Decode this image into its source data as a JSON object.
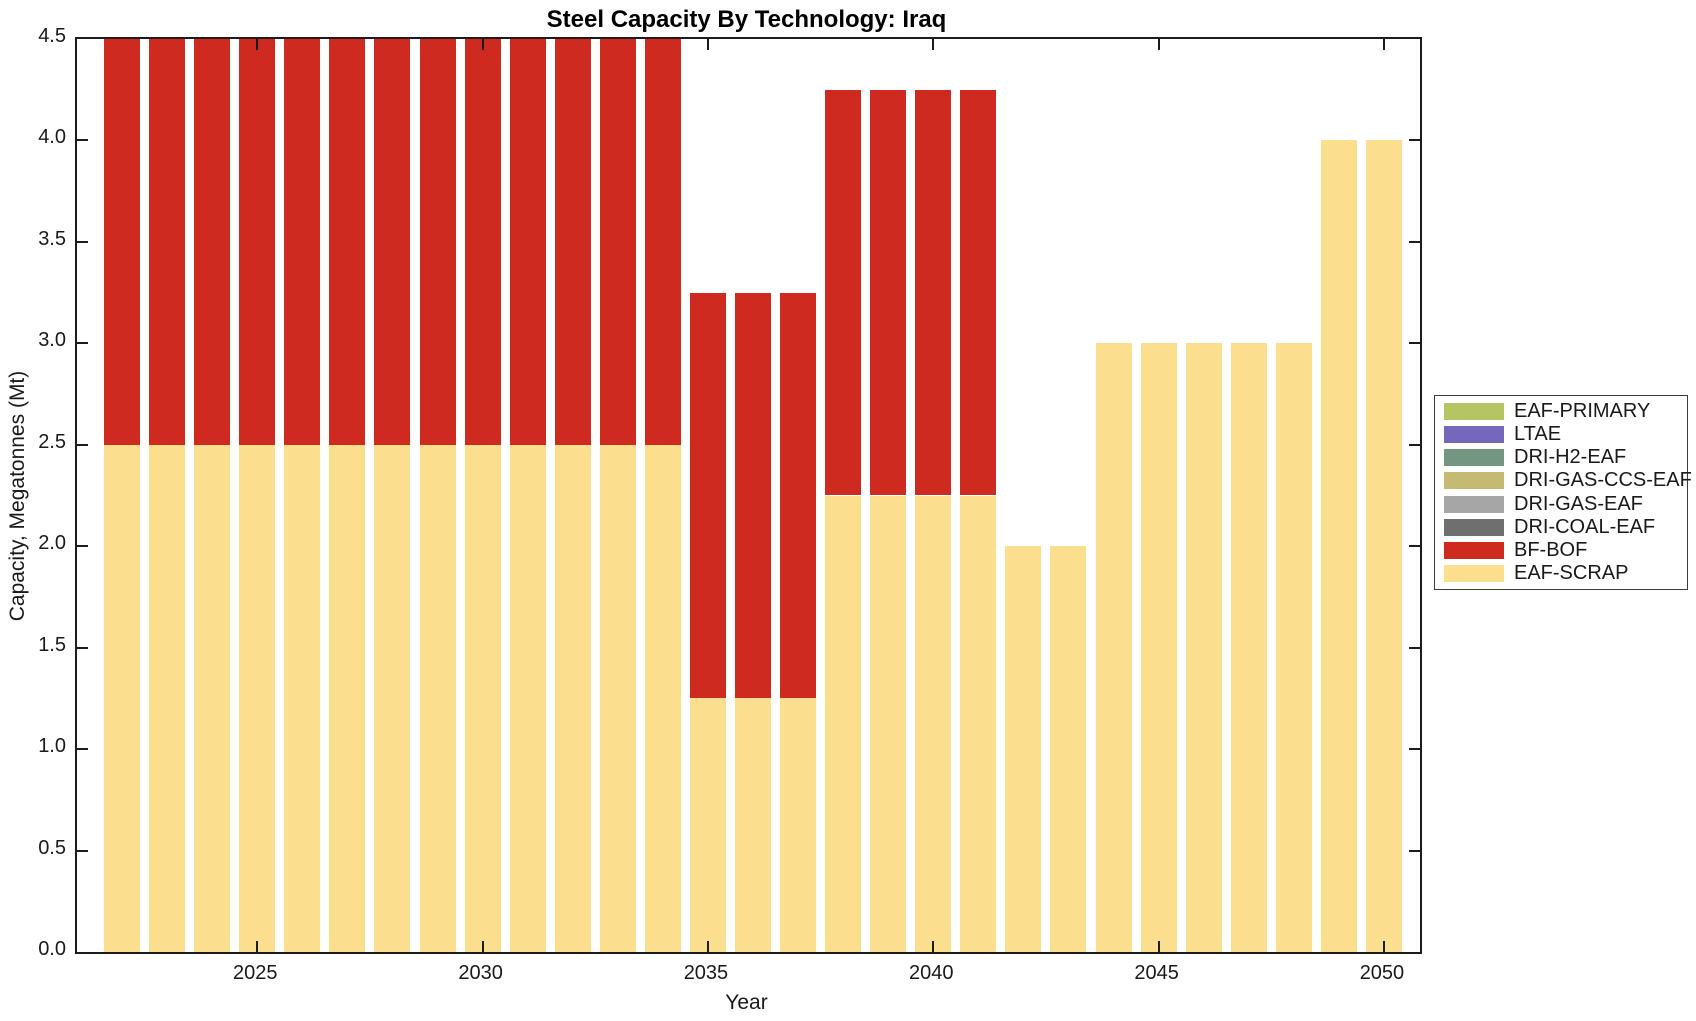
{
  "chart_data": {
    "type": "bar",
    "stacked": true,
    "title": "Steel Capacity By Technology: Iraq",
    "xlabel": "Year",
    "ylabel": "Capacity, Megatonnes (Mt)",
    "xlim": [
      2021.0,
      2050.8
    ],
    "ylim": [
      0,
      4.5
    ],
    "xticks": [
      2025,
      2030,
      2035,
      2040,
      2045,
      2050
    ],
    "ytick_step": 0.5,
    "ytick_labels": [
      "0.0",
      "0.5",
      "1.0",
      "1.5",
      "2.0",
      "2.5",
      "3.0",
      "3.5",
      "4.0",
      "4.5"
    ],
    "bar_width_years": 0.8,
    "grid": false,
    "legend_position": "right-outside",
    "categories": [
      2022,
      2023,
      2024,
      2025,
      2026,
      2027,
      2028,
      2029,
      2030,
      2031,
      2032,
      2033,
      2034,
      2035,
      2036,
      2037,
      2038,
      2039,
      2040,
      2041,
      2042,
      2043,
      2044,
      2045,
      2046,
      2047,
      2048,
      2049,
      2050
    ],
    "series": [
      {
        "name": "EAF-PRIMARY",
        "color": "#b5c564",
        "values": [
          0,
          0,
          0,
          0,
          0,
          0,
          0,
          0,
          0,
          0,
          0,
          0,
          0,
          0,
          0,
          0,
          0,
          0,
          0,
          0,
          0,
          0,
          0,
          0,
          0,
          0,
          0,
          0,
          0
        ]
      },
      {
        "name": "LTAE",
        "color": "#7568bb",
        "values": [
          0,
          0,
          0,
          0,
          0,
          0,
          0,
          0,
          0,
          0,
          0,
          0,
          0,
          0,
          0,
          0,
          0,
          0,
          0,
          0,
          0,
          0,
          0,
          0,
          0,
          0,
          0,
          0,
          0
        ]
      },
      {
        "name": "DRI-H2-EAF",
        "color": "#739680",
        "values": [
          0,
          0,
          0,
          0,
          0,
          0,
          0,
          0,
          0,
          0,
          0,
          0,
          0,
          0,
          0,
          0,
          0,
          0,
          0,
          0,
          0,
          0,
          0,
          0,
          0,
          0,
          0,
          0,
          0
        ]
      },
      {
        "name": "DRI-GAS-CCS-EAF",
        "color": "#c5ba74",
        "values": [
          0,
          0,
          0,
          0,
          0,
          0,
          0,
          0,
          0,
          0,
          0,
          0,
          0,
          0,
          0,
          0,
          0,
          0,
          0,
          0,
          0,
          0,
          0,
          0,
          0,
          0,
          0,
          0,
          0
        ]
      },
      {
        "name": "DRI-GAS-EAF",
        "color": "#a6a6a6",
        "values": [
          0,
          0,
          0,
          0,
          0,
          0,
          0,
          0,
          0,
          0,
          0,
          0,
          0,
          0,
          0,
          0,
          0,
          0,
          0,
          0,
          0,
          0,
          0,
          0,
          0,
          0,
          0,
          0,
          0
        ]
      },
      {
        "name": "DRI-COAL-EAF",
        "color": "#6f6f6f",
        "values": [
          0,
          0,
          0,
          0,
          0,
          0,
          0,
          0,
          0,
          0,
          0,
          0,
          0,
          0,
          0,
          0,
          0,
          0,
          0,
          0,
          0,
          0,
          0,
          0,
          0,
          0,
          0,
          0,
          0
        ]
      },
      {
        "name": "BF-BOF",
        "color": "#cf2a20",
        "values": [
          2.0,
          2.0,
          2.0,
          2.0,
          2.0,
          2.0,
          2.0,
          2.0,
          2.0,
          2.0,
          2.0,
          2.0,
          2.0,
          2.0,
          2.0,
          2.0,
          2.0,
          2.0,
          2.0,
          2.0,
          0,
          0,
          0,
          0,
          0,
          0,
          0,
          0,
          0
        ]
      },
      {
        "name": "EAF-SCRAP",
        "color": "#fbdf8f",
        "values": [
          2.5,
          2.5,
          2.5,
          2.5,
          2.5,
          2.5,
          2.5,
          2.5,
          2.5,
          2.5,
          2.5,
          2.5,
          2.5,
          1.25,
          1.25,
          1.25,
          2.25,
          2.25,
          2.25,
          2.25,
          2.0,
          2.0,
          3.0,
          3.0,
          3.0,
          3.0,
          3.0,
          4.0,
          4.0
        ]
      }
    ],
    "stack_order_bottom_to_top": [
      "EAF-SCRAP",
      "BF-BOF",
      "DRI-COAL-EAF",
      "DRI-GAS-EAF",
      "DRI-GAS-CCS-EAF",
      "DRI-H2-EAF",
      "LTAE",
      "EAF-PRIMARY"
    ],
    "legend_order_top_to_bottom": [
      "EAF-PRIMARY",
      "LTAE",
      "DRI-H2-EAF",
      "DRI-GAS-CCS-EAF",
      "DRI-GAS-EAF",
      "DRI-COAL-EAF",
      "BF-BOF",
      "EAF-SCRAP"
    ]
  }
}
